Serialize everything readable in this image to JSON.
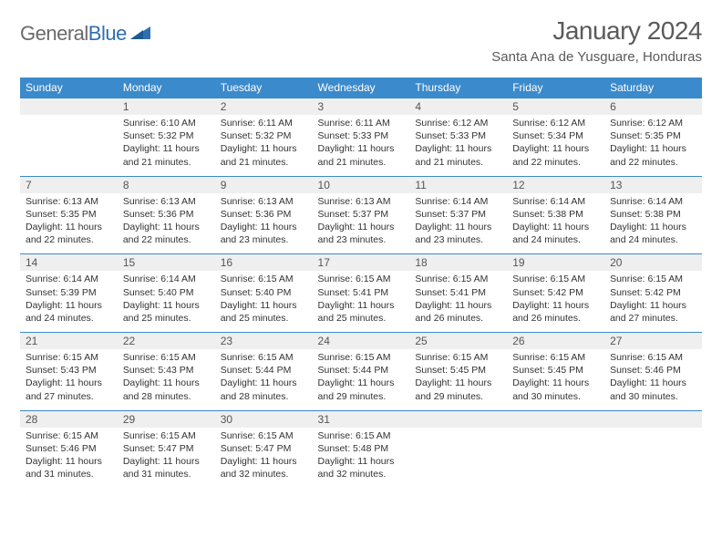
{
  "logo": {
    "part1": "General",
    "part2": "Blue"
  },
  "title": "January 2024",
  "location": "Santa Ana de Yusguare, Honduras",
  "colors": {
    "header_bg": "#3b8acb",
    "header_text": "#ffffff",
    "daynum_bg": "#efefef",
    "divider": "#3b8acb",
    "logo_gray": "#6a6a6a",
    "logo_blue": "#2f6fb0"
  },
  "day_names": [
    "Sunday",
    "Monday",
    "Tuesday",
    "Wednesday",
    "Thursday",
    "Friday",
    "Saturday"
  ],
  "weeks": [
    {
      "nums": [
        "",
        "1",
        "2",
        "3",
        "4",
        "5",
        "6"
      ],
      "cells": [
        null,
        {
          "sunrise": "Sunrise: 6:10 AM",
          "sunset": "Sunset: 5:32 PM",
          "day1": "Daylight: 11 hours",
          "day2": "and 21 minutes."
        },
        {
          "sunrise": "Sunrise: 6:11 AM",
          "sunset": "Sunset: 5:32 PM",
          "day1": "Daylight: 11 hours",
          "day2": "and 21 minutes."
        },
        {
          "sunrise": "Sunrise: 6:11 AM",
          "sunset": "Sunset: 5:33 PM",
          "day1": "Daylight: 11 hours",
          "day2": "and 21 minutes."
        },
        {
          "sunrise": "Sunrise: 6:12 AM",
          "sunset": "Sunset: 5:33 PM",
          "day1": "Daylight: 11 hours",
          "day2": "and 21 minutes."
        },
        {
          "sunrise": "Sunrise: 6:12 AM",
          "sunset": "Sunset: 5:34 PM",
          "day1": "Daylight: 11 hours",
          "day2": "and 22 minutes."
        },
        {
          "sunrise": "Sunrise: 6:12 AM",
          "sunset": "Sunset: 5:35 PM",
          "day1": "Daylight: 11 hours",
          "day2": "and 22 minutes."
        }
      ]
    },
    {
      "nums": [
        "7",
        "8",
        "9",
        "10",
        "11",
        "12",
        "13"
      ],
      "cells": [
        {
          "sunrise": "Sunrise: 6:13 AM",
          "sunset": "Sunset: 5:35 PM",
          "day1": "Daylight: 11 hours",
          "day2": "and 22 minutes."
        },
        {
          "sunrise": "Sunrise: 6:13 AM",
          "sunset": "Sunset: 5:36 PM",
          "day1": "Daylight: 11 hours",
          "day2": "and 22 minutes."
        },
        {
          "sunrise": "Sunrise: 6:13 AM",
          "sunset": "Sunset: 5:36 PM",
          "day1": "Daylight: 11 hours",
          "day2": "and 23 minutes."
        },
        {
          "sunrise": "Sunrise: 6:13 AM",
          "sunset": "Sunset: 5:37 PM",
          "day1": "Daylight: 11 hours",
          "day2": "and 23 minutes."
        },
        {
          "sunrise": "Sunrise: 6:14 AM",
          "sunset": "Sunset: 5:37 PM",
          "day1": "Daylight: 11 hours",
          "day2": "and 23 minutes."
        },
        {
          "sunrise": "Sunrise: 6:14 AM",
          "sunset": "Sunset: 5:38 PM",
          "day1": "Daylight: 11 hours",
          "day2": "and 24 minutes."
        },
        {
          "sunrise": "Sunrise: 6:14 AM",
          "sunset": "Sunset: 5:38 PM",
          "day1": "Daylight: 11 hours",
          "day2": "and 24 minutes."
        }
      ]
    },
    {
      "nums": [
        "14",
        "15",
        "16",
        "17",
        "18",
        "19",
        "20"
      ],
      "cells": [
        {
          "sunrise": "Sunrise: 6:14 AM",
          "sunset": "Sunset: 5:39 PM",
          "day1": "Daylight: 11 hours",
          "day2": "and 24 minutes."
        },
        {
          "sunrise": "Sunrise: 6:14 AM",
          "sunset": "Sunset: 5:40 PM",
          "day1": "Daylight: 11 hours",
          "day2": "and 25 minutes."
        },
        {
          "sunrise": "Sunrise: 6:15 AM",
          "sunset": "Sunset: 5:40 PM",
          "day1": "Daylight: 11 hours",
          "day2": "and 25 minutes."
        },
        {
          "sunrise": "Sunrise: 6:15 AM",
          "sunset": "Sunset: 5:41 PM",
          "day1": "Daylight: 11 hours",
          "day2": "and 25 minutes."
        },
        {
          "sunrise": "Sunrise: 6:15 AM",
          "sunset": "Sunset: 5:41 PM",
          "day1": "Daylight: 11 hours",
          "day2": "and 26 minutes."
        },
        {
          "sunrise": "Sunrise: 6:15 AM",
          "sunset": "Sunset: 5:42 PM",
          "day1": "Daylight: 11 hours",
          "day2": "and 26 minutes."
        },
        {
          "sunrise": "Sunrise: 6:15 AM",
          "sunset": "Sunset: 5:42 PM",
          "day1": "Daylight: 11 hours",
          "day2": "and 27 minutes."
        }
      ]
    },
    {
      "nums": [
        "21",
        "22",
        "23",
        "24",
        "25",
        "26",
        "27"
      ],
      "cells": [
        {
          "sunrise": "Sunrise: 6:15 AM",
          "sunset": "Sunset: 5:43 PM",
          "day1": "Daylight: 11 hours",
          "day2": "and 27 minutes."
        },
        {
          "sunrise": "Sunrise: 6:15 AM",
          "sunset": "Sunset: 5:43 PM",
          "day1": "Daylight: 11 hours",
          "day2": "and 28 minutes."
        },
        {
          "sunrise": "Sunrise: 6:15 AM",
          "sunset": "Sunset: 5:44 PM",
          "day1": "Daylight: 11 hours",
          "day2": "and 28 minutes."
        },
        {
          "sunrise": "Sunrise: 6:15 AM",
          "sunset": "Sunset: 5:44 PM",
          "day1": "Daylight: 11 hours",
          "day2": "and 29 minutes."
        },
        {
          "sunrise": "Sunrise: 6:15 AM",
          "sunset": "Sunset: 5:45 PM",
          "day1": "Daylight: 11 hours",
          "day2": "and 29 minutes."
        },
        {
          "sunrise": "Sunrise: 6:15 AM",
          "sunset": "Sunset: 5:45 PM",
          "day1": "Daylight: 11 hours",
          "day2": "and 30 minutes."
        },
        {
          "sunrise": "Sunrise: 6:15 AM",
          "sunset": "Sunset: 5:46 PM",
          "day1": "Daylight: 11 hours",
          "day2": "and 30 minutes."
        }
      ]
    },
    {
      "nums": [
        "28",
        "29",
        "30",
        "31",
        "",
        "",
        ""
      ],
      "cells": [
        {
          "sunrise": "Sunrise: 6:15 AM",
          "sunset": "Sunset: 5:46 PM",
          "day1": "Daylight: 11 hours",
          "day2": "and 31 minutes."
        },
        {
          "sunrise": "Sunrise: 6:15 AM",
          "sunset": "Sunset: 5:47 PM",
          "day1": "Daylight: 11 hours",
          "day2": "and 31 minutes."
        },
        {
          "sunrise": "Sunrise: 6:15 AM",
          "sunset": "Sunset: 5:47 PM",
          "day1": "Daylight: 11 hours",
          "day2": "and 32 minutes."
        },
        {
          "sunrise": "Sunrise: 6:15 AM",
          "sunset": "Sunset: 5:48 PM",
          "day1": "Daylight: 11 hours",
          "day2": "and 32 minutes."
        },
        null,
        null,
        null
      ]
    }
  ]
}
